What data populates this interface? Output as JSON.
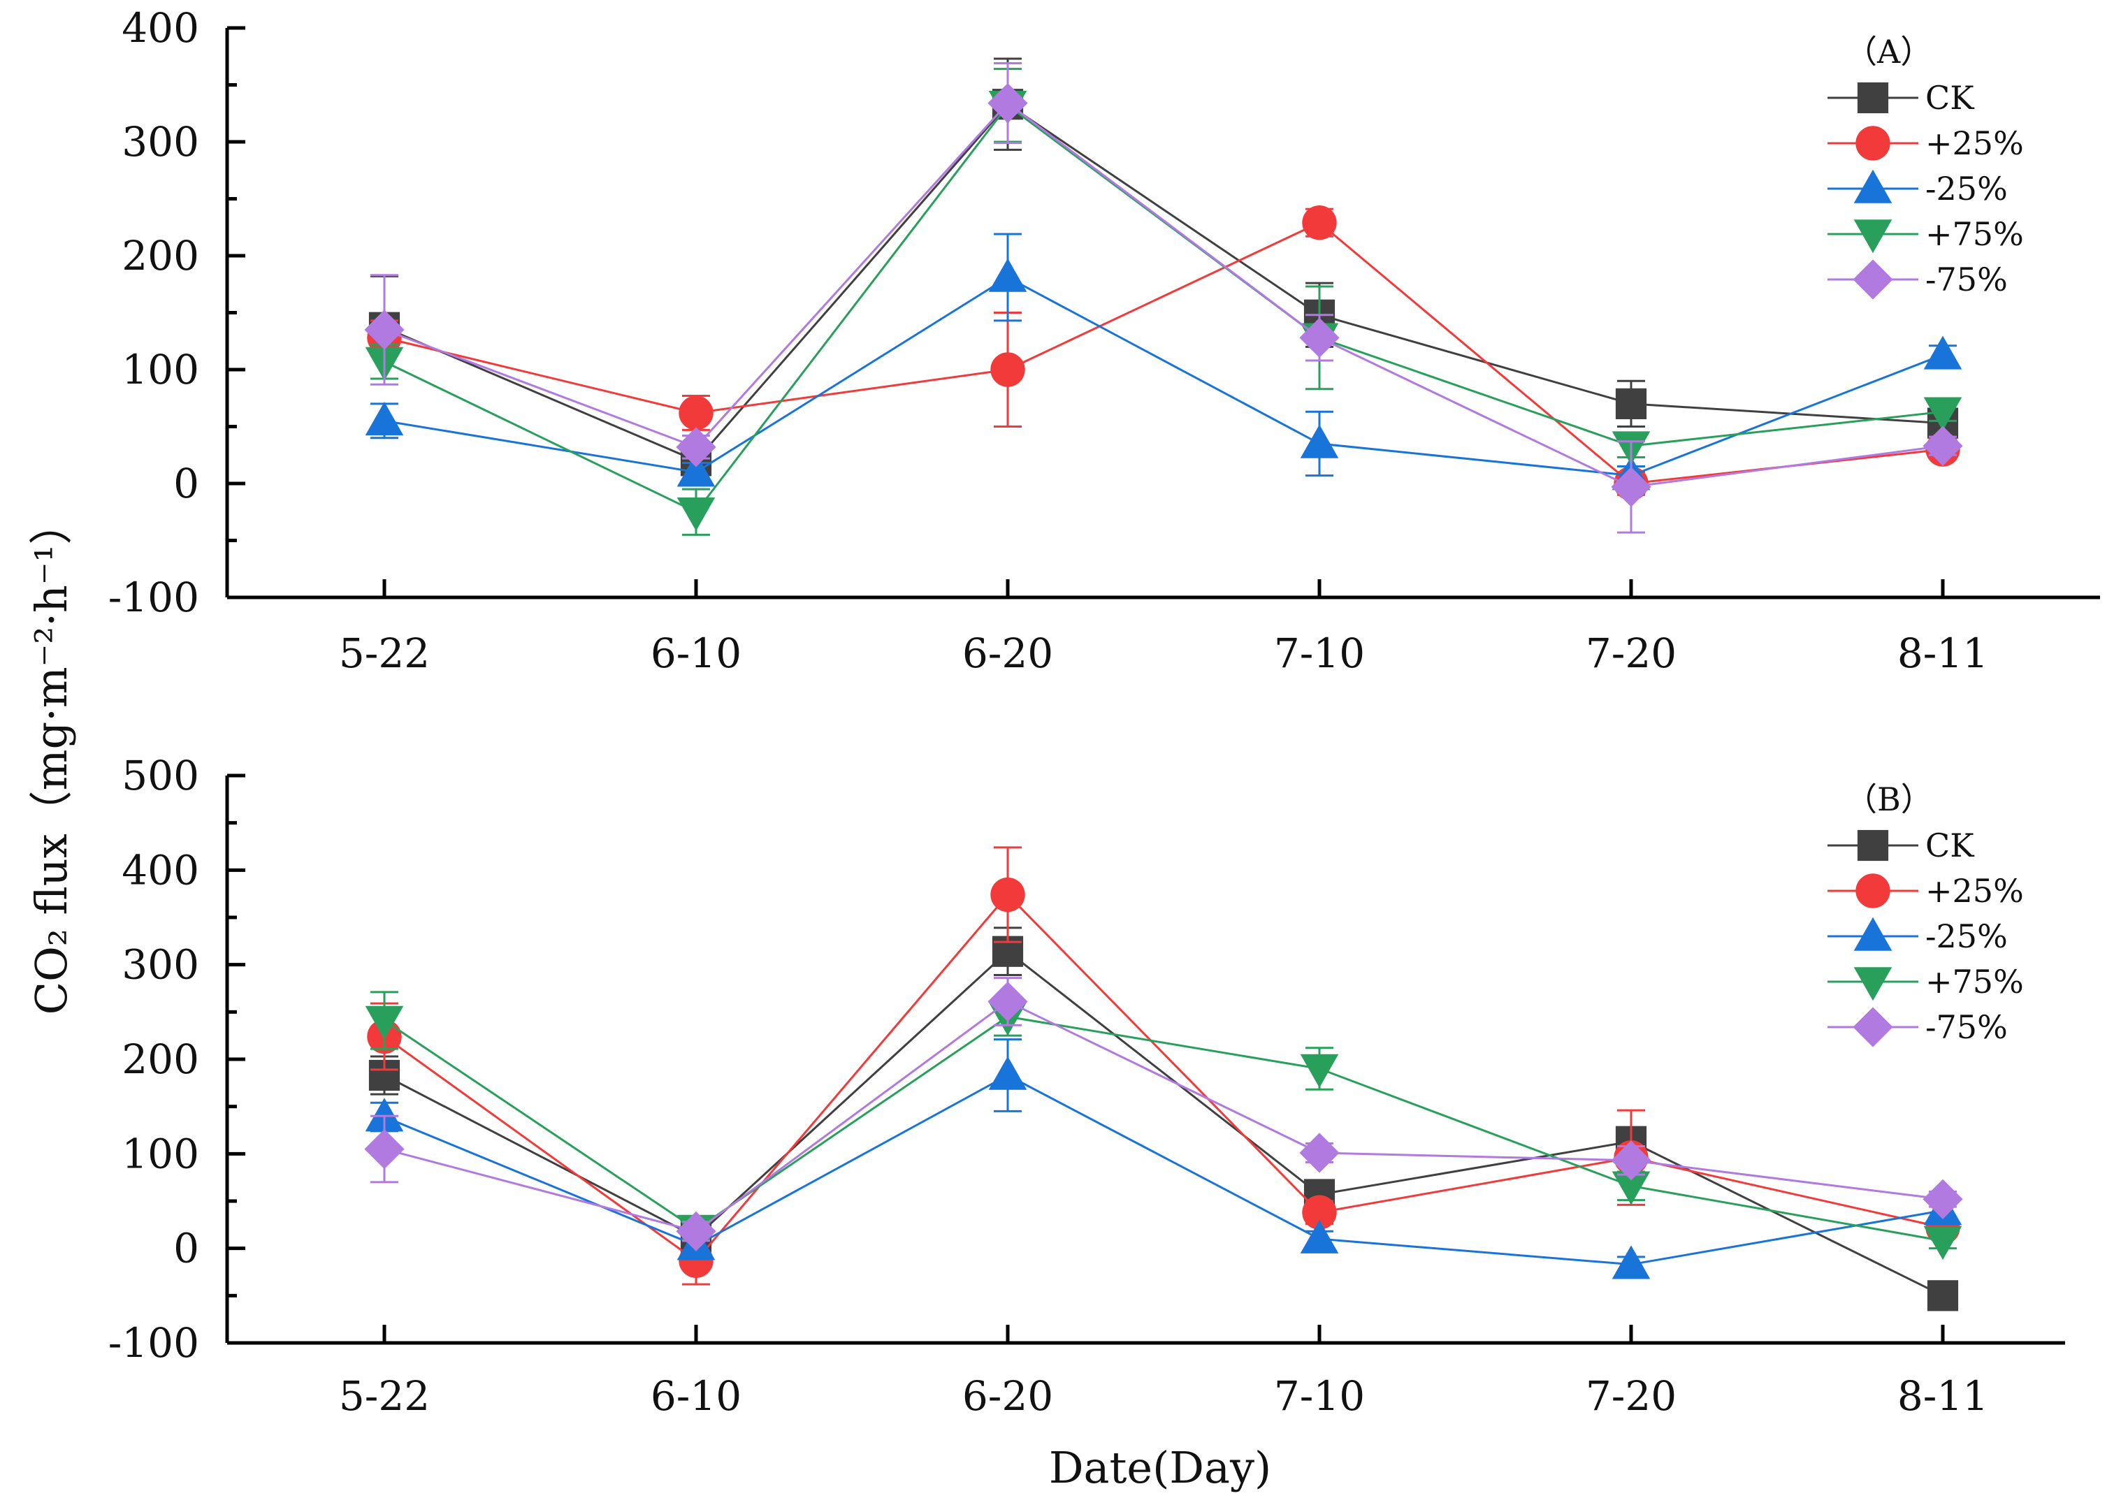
{
  "chart_data": [
    {
      "type": "line",
      "panel_label": "（A）",
      "categories": [
        "5-22",
        "6-10",
        "6-20",
        "7-10",
        "7-20",
        "8-11"
      ],
      "ylim": [
        -100,
        400
      ],
      "yticks": [
        "-100",
        "0",
        "100",
        "200",
        "300",
        "400"
      ],
      "legend_position": "top-right",
      "grid": false,
      "series": [
        {
          "name": "CK",
          "color": "#404040",
          "marker": "square",
          "values": [
            137,
            20,
            333,
            148,
            70,
            53
          ],
          "errors": [
            45,
            10,
            40,
            28,
            20,
            8
          ]
        },
        {
          "name": "+25%",
          "color": "#f23a3a",
          "marker": "circle",
          "values": [
            128,
            62,
            100,
            229,
            0,
            30
          ],
          "errors": [
            15,
            15,
            50,
            12,
            10,
            8
          ]
        },
        {
          "name": "-25%",
          "color": "#1874d8",
          "marker": "triangle-up",
          "values": [
            55,
            10,
            181,
            35,
            7,
            113
          ],
          "errors": [
            15,
            8,
            38,
            28,
            8,
            8
          ]
        },
        {
          "name": "+75%",
          "color": "#28a05c",
          "marker": "triangle-down",
          "values": [
            107,
            -25,
            332,
            128,
            33,
            63
          ],
          "errors": [
            15,
            20,
            32,
            45,
            10,
            8
          ]
        },
        {
          "name": "-75%",
          "color": "#b07ae0",
          "marker": "diamond",
          "values": [
            135,
            32,
            334,
            128,
            -3,
            33
          ],
          "errors": [
            48,
            10,
            35,
            20,
            40,
            8
          ]
        }
      ]
    },
    {
      "type": "line",
      "panel_label": "（B）",
      "categories": [
        "5-22",
        "6-10",
        "6-20",
        "7-10",
        "7-20",
        "8-11"
      ],
      "ylim": [
        -100,
        500
      ],
      "yticks": [
        "-100",
        "0",
        "100",
        "200",
        "300",
        "400",
        "500"
      ],
      "legend_position": "top-right",
      "grid": false,
      "series": [
        {
          "name": "CK",
          "color": "#404040",
          "marker": "square",
          "values": [
            183,
            12,
            314,
            57,
            113,
            -50
          ],
          "errors": [
            20,
            10,
            25,
            15,
            15,
            8
          ]
        },
        {
          "name": "+25%",
          "color": "#f23a3a",
          "marker": "circle",
          "values": [
            224,
            -13,
            374,
            38,
            96,
            22
          ],
          "errors": [
            35,
            25,
            50,
            12,
            50,
            8
          ]
        },
        {
          "name": "-25%",
          "color": "#1874d8",
          "marker": "triangle-up",
          "values": [
            139,
            3,
            183,
            10,
            -17,
            40
          ],
          "errors": [
            15,
            8,
            38,
            8,
            8,
            8
          ]
        },
        {
          "name": "+75%",
          "color": "#28a05c",
          "marker": "triangle-down",
          "values": [
            241,
            20,
            245,
            190,
            66,
            8
          ],
          "errors": [
            30,
            10,
            20,
            22,
            15,
            8
          ]
        },
        {
          "name": "-75%",
          "color": "#b07ae0",
          "marker": "diamond",
          "values": [
            105,
            18,
            261,
            101,
            93,
            52
          ],
          "errors": [
            35,
            10,
            25,
            10,
            15,
            8
          ]
        }
      ]
    }
  ],
  "ylabel": "CO₂ flux（mg·m⁻²·h⁻¹）",
  "xlabel": "Date(Day)"
}
